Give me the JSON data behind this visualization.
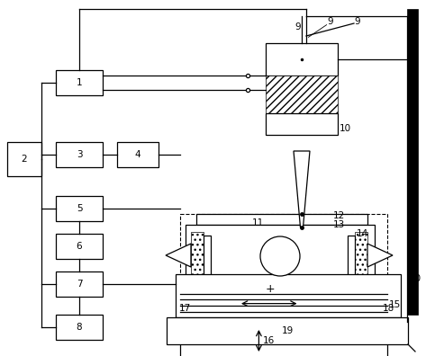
{
  "bg_color": "#ffffff",
  "line_color": "#000000",
  "fig_width": 4.83,
  "fig_height": 3.96,
  "dpi": 100
}
